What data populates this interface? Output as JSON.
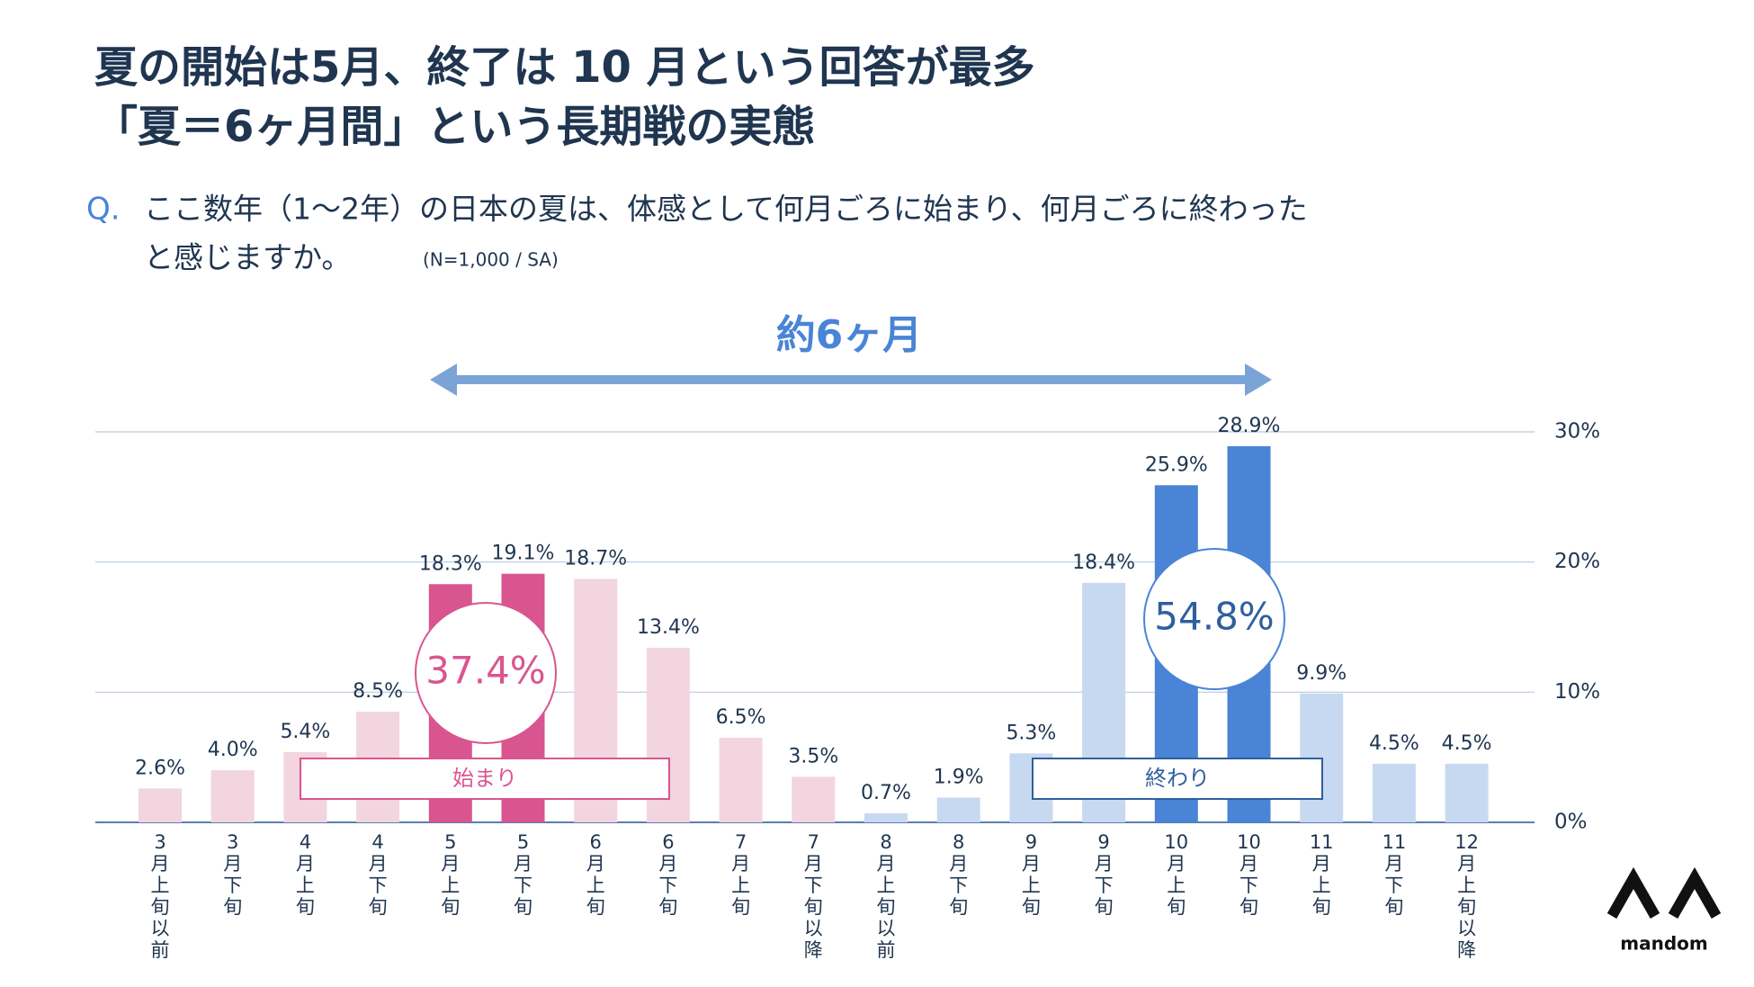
{
  "title_lines": [
    "夏の開始は5月、終了は 10 月という回答が最多",
    "「夏＝6ヶ月間」という長期戦の実態"
  ],
  "question": {
    "marker": "Q.",
    "lines": [
      "ここ数年（1～2年）の日本の夏は、体感として何月ごろに始まり、何月ごろに終わった",
      "と感じますか。"
    ],
    "note": "(N=1,000 / SA)"
  },
  "logo": "mandom",
  "chart_data": {
    "type": "bar",
    "categories": [
      "3月上旬以前",
      "3月下旬",
      "4月上旬",
      "4月下旬",
      "5月上旬",
      "5月下旬",
      "6月上旬",
      "6月下旬",
      "7月上旬",
      "7月下旬以降",
      "8月上旬以前",
      "8月下旬",
      "9月上旬",
      "9月下旬",
      "10月上旬",
      "10月下旬",
      "11月上旬",
      "11月下旬",
      "12月上旬以降"
    ],
    "values": [
      2.6,
      4.0,
      5.4,
      8.5,
      18.3,
      19.1,
      18.7,
      13.4,
      6.5,
      3.5,
      0.7,
      1.9,
      5.3,
      18.4,
      25.9,
      28.9,
      9.9,
      4.5,
      4.5
    ],
    "value_labels": [
      "2.6%",
      "4.0%",
      "5.4%",
      "8.5%",
      "18.3%",
      "19.1%",
      "18.7%",
      "13.4%",
      "6.5%",
      "3.5%",
      "0.7%",
      "1.9%",
      "5.3%",
      "18.4%",
      "25.9%",
      "28.9%",
      "9.9%",
      "4.5%",
      "4.5%"
    ],
    "colors": [
      "#f2d5df",
      "#f2d5df",
      "#f2d5df",
      "#f2d5df",
      "#d9558f",
      "#d9558f",
      "#f2d5df",
      "#f2d5df",
      "#f2d5df",
      "#f2d5df",
      "#c7d9f1",
      "#c7d9f1",
      "#c7d9f1",
      "#c7d9f1",
      "#4a84d6",
      "#4a84d6",
      "#c7d9f1",
      "#c7d9f1",
      "#c7d9f1"
    ],
    "ylim": [
      0,
      30
    ],
    "yticks": [
      {
        "value": 0,
        "label": "0%"
      },
      {
        "value": 10,
        "label": "10%"
      },
      {
        "value": 20,
        "label": "20%"
      },
      {
        "value": 30,
        "label": "30%"
      }
    ],
    "grid": true,
    "span_label": "約6ヶ月",
    "groups": [
      {
        "label": "始まり",
        "total": "37.4%"
      },
      {
        "label": "終わり",
        "total": "54.8%"
      }
    ]
  }
}
